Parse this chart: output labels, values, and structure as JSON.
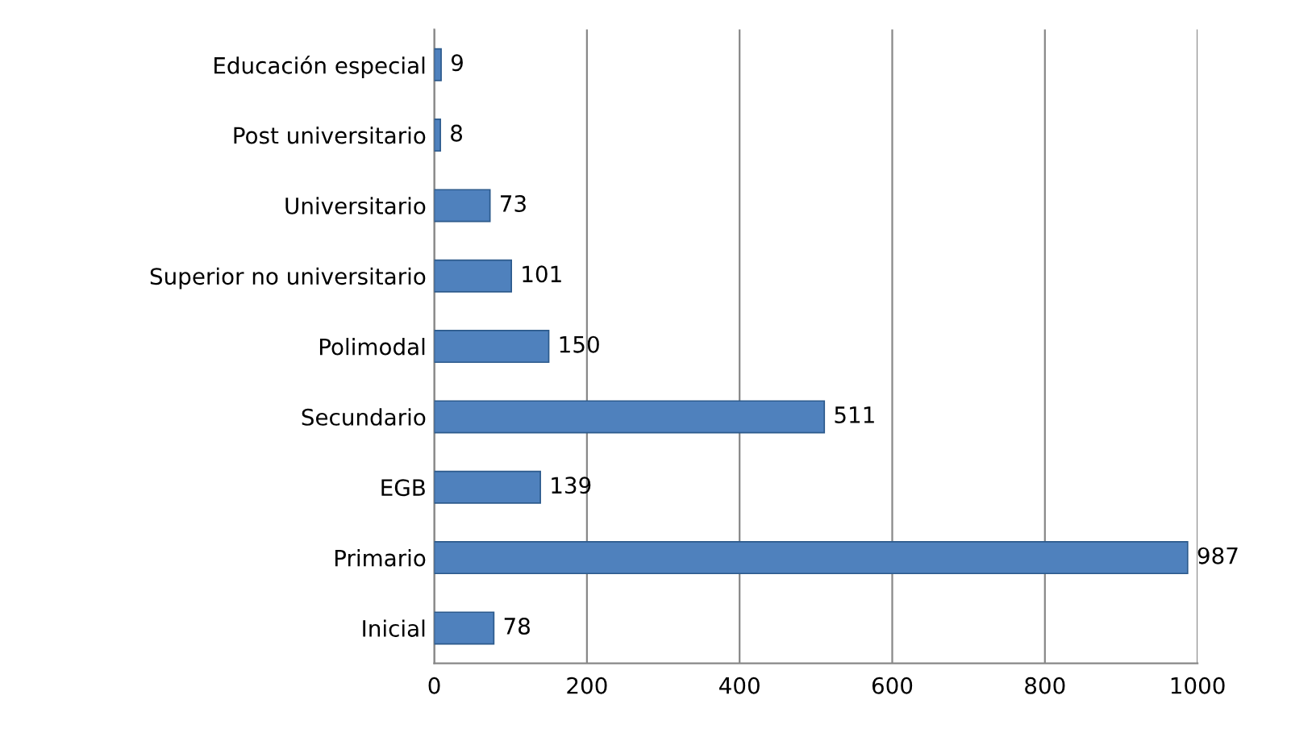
{
  "chart_data": {
    "type": "bar",
    "orientation": "horizontal",
    "categories": [
      "Educación especial",
      "Post universitario",
      "Universitario",
      "Superior no universitario",
      "Polimodal",
      "Secundario",
      "EGB",
      "Primario",
      "Inicial"
    ],
    "values": [
      9,
      8,
      73,
      101,
      150,
      511,
      139,
      987,
      78
    ],
    "color": "#4f81bd",
    "xlim": [
      0,
      1000
    ],
    "xticks": [
      0,
      200,
      400,
      600,
      800,
      1000
    ],
    "grid": "x",
    "data_labels": true
  }
}
